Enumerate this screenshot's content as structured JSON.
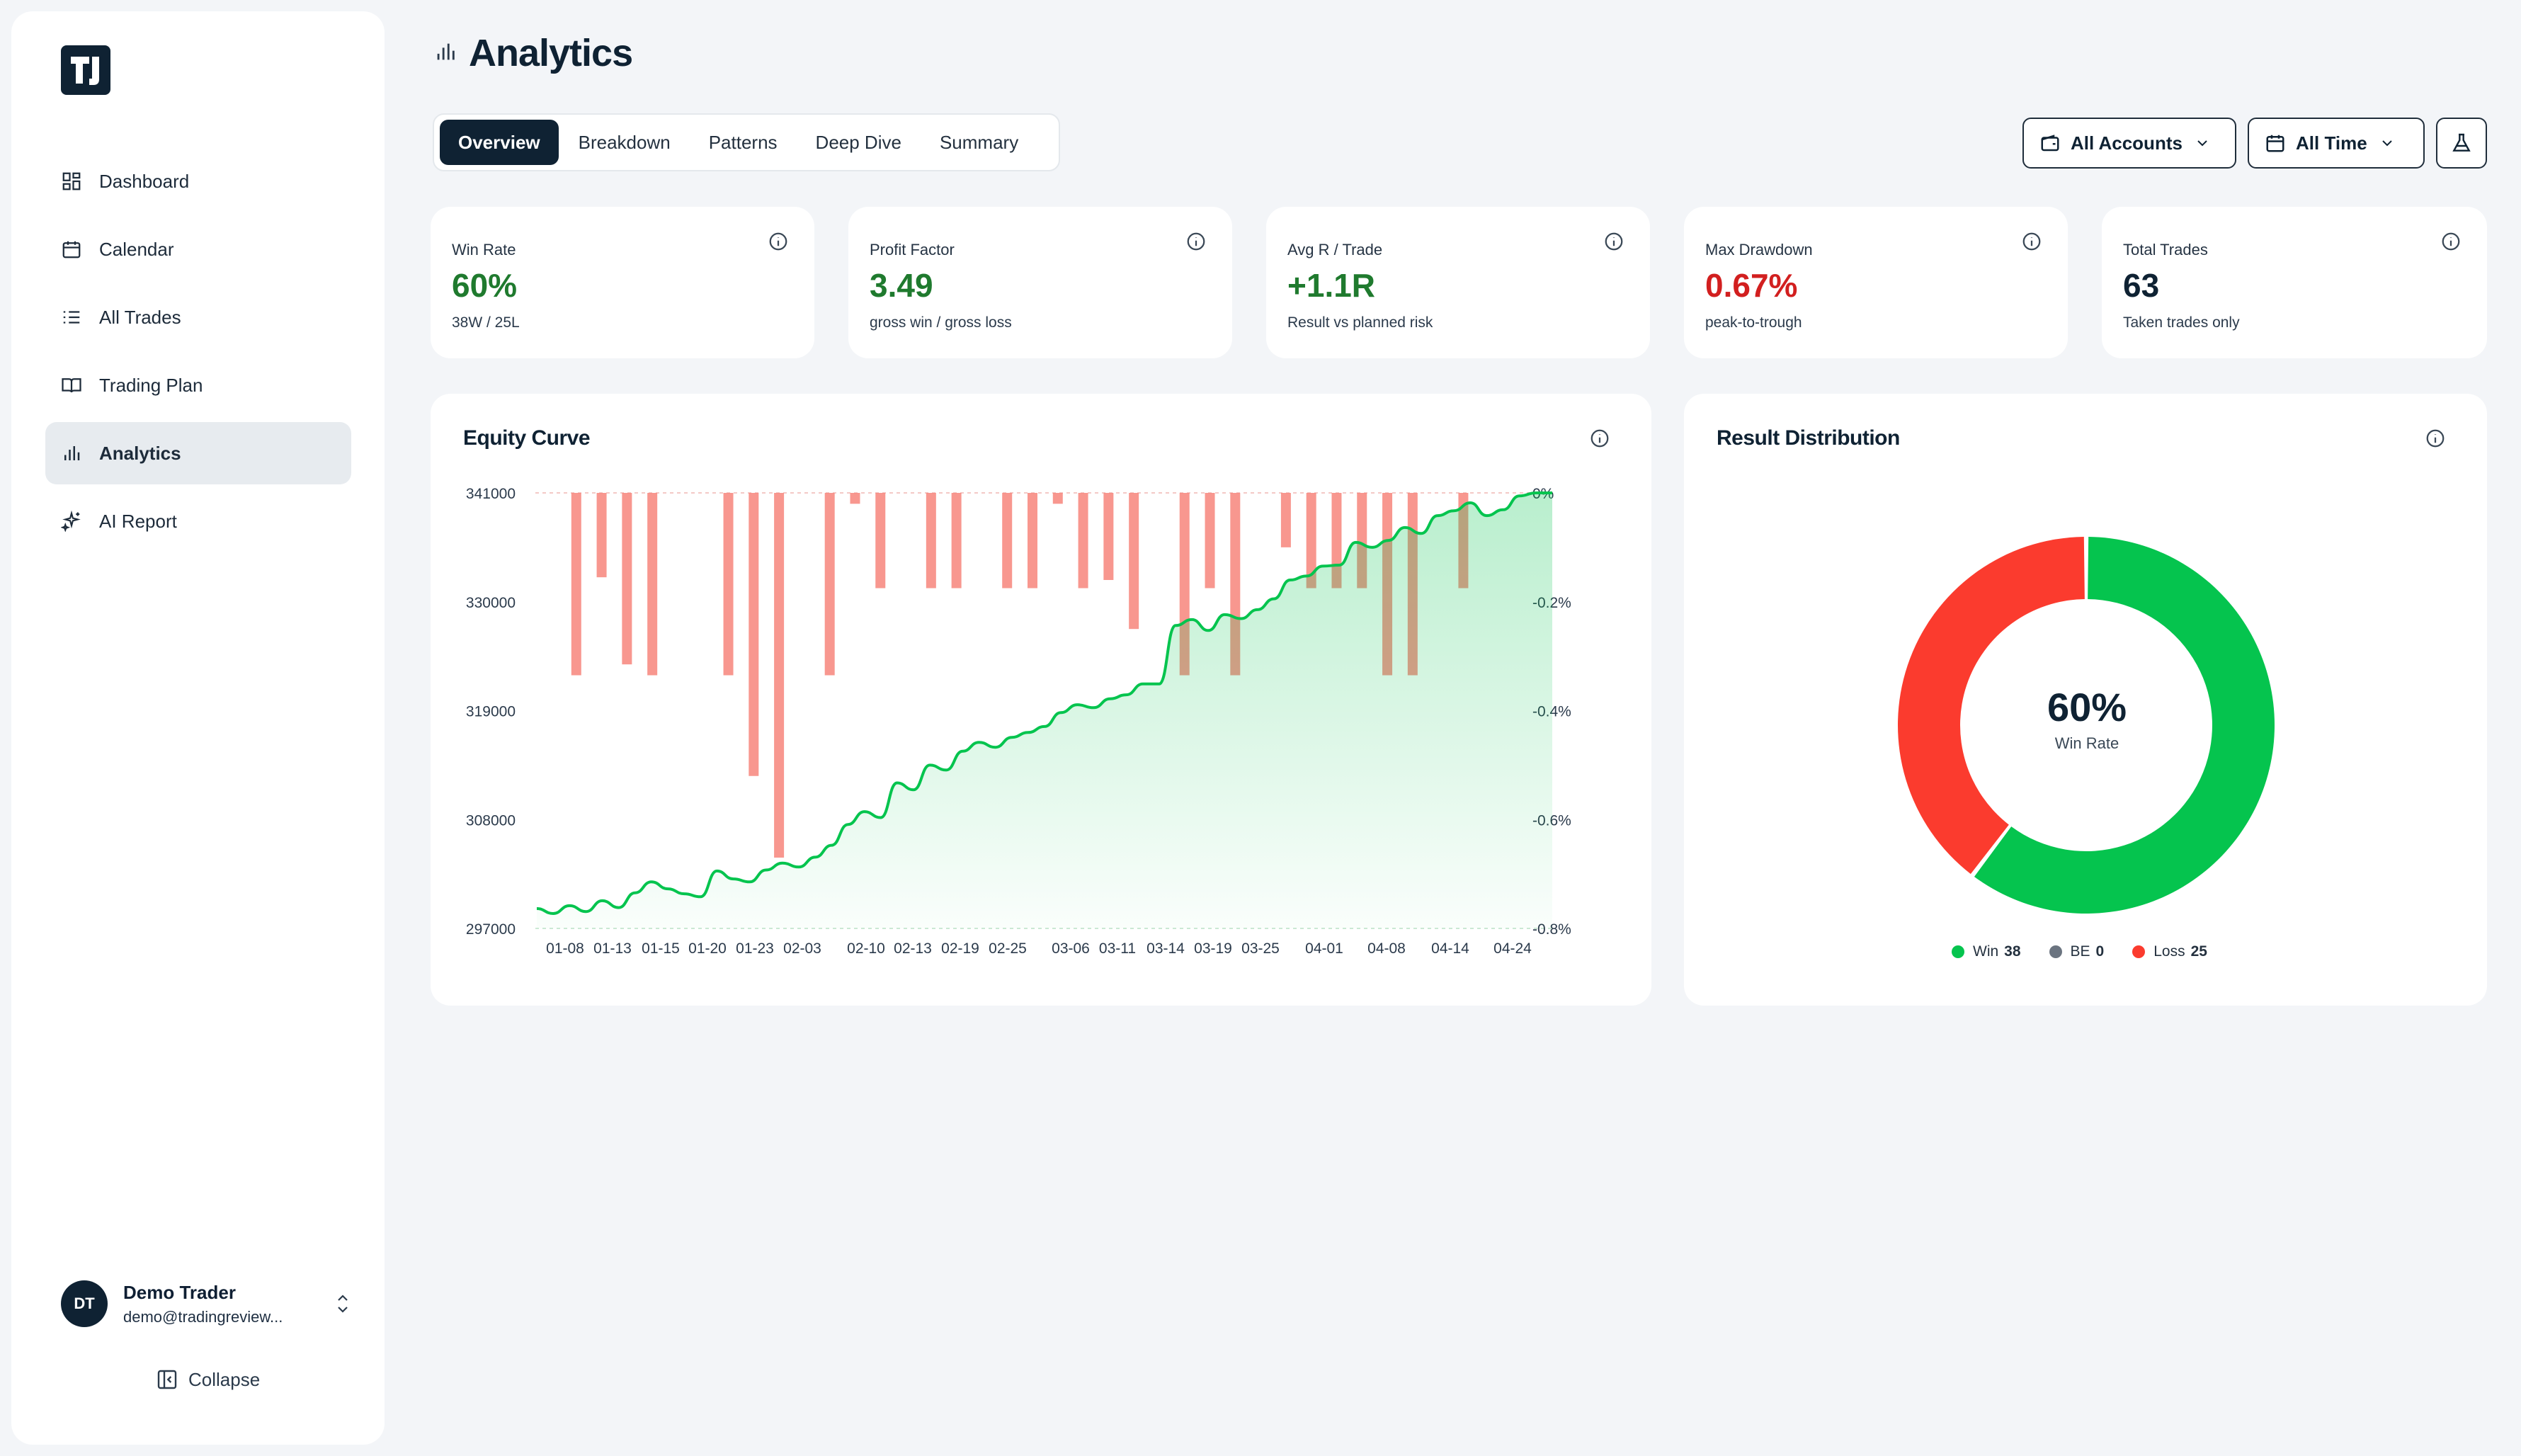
{
  "app": {
    "logo_text": "TJ"
  },
  "sidebar": {
    "items": [
      {
        "label": "Dashboard",
        "icon": "grid-icon"
      },
      {
        "label": "Calendar",
        "icon": "calendar-icon"
      },
      {
        "label": "All Trades",
        "icon": "list-icon"
      },
      {
        "label": "Trading Plan",
        "icon": "book-icon"
      },
      {
        "label": "Analytics",
        "icon": "bar-chart-icon",
        "active": true
      },
      {
        "label": "AI Report",
        "icon": "sparkles-icon"
      }
    ],
    "user": {
      "initials": "DT",
      "name": "Demo Trader",
      "email": "demo@tradingreview..."
    },
    "collapse_label": "Collapse"
  },
  "header": {
    "title": "Analytics",
    "tabs": [
      "Overview",
      "Breakdown",
      "Patterns",
      "Deep Dive",
      "Summary"
    ],
    "active_tab": "Overview",
    "account_filter": "All Accounts",
    "time_filter": "All Time"
  },
  "stats": [
    {
      "label": "Win Rate",
      "value": "60%",
      "sub": "38W / 25L",
      "color": "#1f7a2e"
    },
    {
      "label": "Profit Factor",
      "value": "3.49",
      "sub": "gross win / gross loss",
      "color": "#1f7a2e"
    },
    {
      "label": "Avg R / Trade",
      "value": "+1.1R",
      "sub": "Result vs planned risk",
      "color": "#1f7a2e"
    },
    {
      "label": "Max Drawdown",
      "value": "0.67%",
      "sub": "peak-to-trough",
      "color": "#d21f1f"
    },
    {
      "label": "Total Trades",
      "value": "63",
      "sub": "Taken trades only",
      "color": "#0f2233"
    }
  ],
  "equity_panel": {
    "title": "Equity Curve"
  },
  "distribution_panel": {
    "title": "Result Distribution",
    "center_value": "60%",
    "center_label": "Win Rate"
  },
  "chart_data": [
    {
      "type": "line",
      "title": "Equity Curve",
      "y_left_ticks": [
        "341000",
        "330000",
        "319000",
        "308000",
        "297000"
      ],
      "y_right_ticks": [
        "0%",
        "-0.2%",
        "-0.4%",
        "-0.6%",
        "-0.8%"
      ],
      "ylim_left": [
        297000,
        341000
      ],
      "ylim_right": [
        -0.8,
        0
      ],
      "x_tick_labels": [
        "01-08",
        "01-13",
        "01-15",
        "01-20",
        "01-23",
        "02-03",
        "02-10",
        "02-13",
        "02-19",
        "02-25",
        "03-06",
        "03-11",
        "03-14",
        "03-19",
        "03-25",
        "04-01",
        "04-08",
        "04-14",
        "04-24"
      ],
      "series": [
        {
          "type": "line",
          "values": [
            299000,
            298500,
            299300,
            298700,
            299800,
            299100,
            300600,
            301700,
            301000,
            300500,
            300200,
            302800,
            302000,
            301700,
            302900,
            303600,
            303200,
            304200,
            305400,
            307500,
            308800,
            308200,
            311700,
            311000,
            313500,
            313000,
            314900,
            315800,
            315300,
            316300,
            316800,
            317400,
            318800,
            319600,
            319300,
            320200,
            320600,
            321700,
            321700,
            327600,
            328200,
            327100,
            328700,
            328300,
            329200,
            330300,
            332200,
            332600,
            333600,
            333700,
            336000,
            335500,
            336200,
            337500,
            336900,
            338700,
            339200,
            340000,
            338700,
            339300,
            340700,
            342800,
            342500
          ]
        },
        {
          "type": "bar",
          "values": [
            0,
            -0.335,
            -0.155,
            -0.315,
            -0.335,
            0,
            0,
            -0.335,
            -0.52,
            -0.67,
            0,
            -0.335,
            -0.02,
            -0.175,
            0,
            -0.175,
            -0.175,
            0,
            -0.175,
            -0.175,
            -0.02,
            -0.175,
            -0.16,
            -0.25,
            0,
            -0.335,
            -0.175,
            -0.335,
            0,
            -0.1,
            -0.175,
            -0.175,
            -0.175,
            -0.335,
            -0.335,
            0,
            -0.175,
            0,
            0
          ]
        }
      ]
    },
    {
      "type": "pie",
      "title": "Result Distribution",
      "categories": [
        "Win",
        "BE",
        "Loss"
      ],
      "values": [
        38,
        0,
        25
      ],
      "colors": [
        "#05c44e",
        "#6b7480",
        "#fb3b2e"
      ]
    }
  ]
}
